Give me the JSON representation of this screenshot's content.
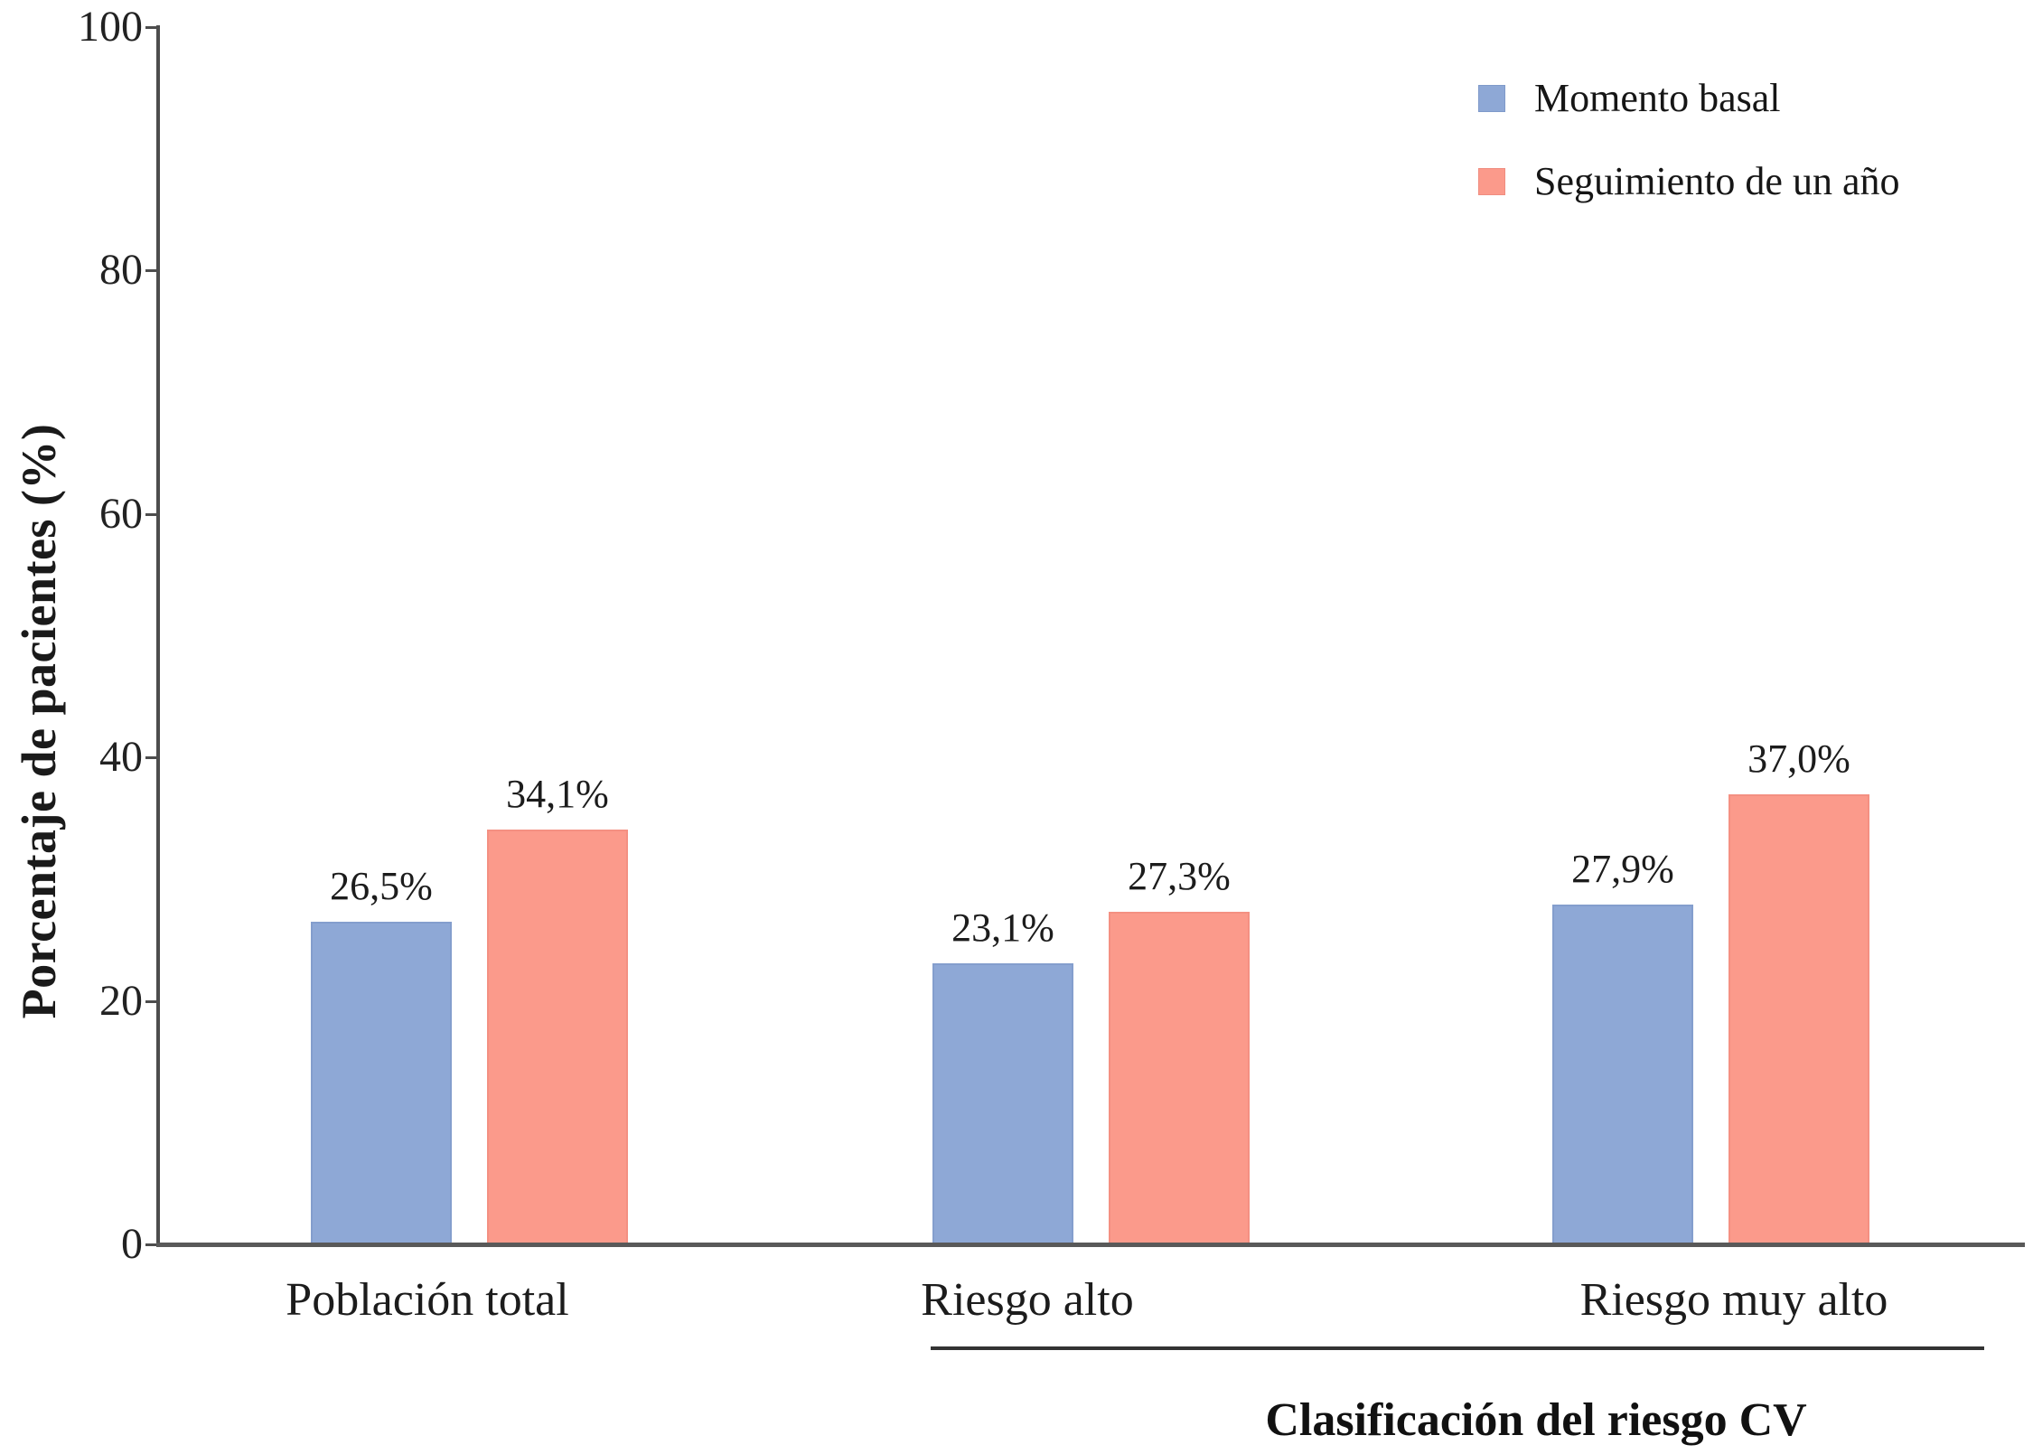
{
  "chart_data": {
    "type": "bar",
    "title": "",
    "categories": [
      "Población total",
      "Riesgo alto",
      "Riesgo muy alto"
    ],
    "series": [
      {
        "name": "Momento basal",
        "color": "#8EA8D6",
        "values": [
          26.5,
          23.1,
          27.9
        ],
        "labels": [
          "26,5%",
          "23,1%",
          "27,9%"
        ]
      },
      {
        "name": "Seguimiento de un año",
        "color": "#FB9A8B",
        "values": [
          34.1,
          27.3,
          37.0
        ],
        "labels": [
          "34,1%",
          "27,3%",
          "37,0%"
        ]
      }
    ],
    "ylabel": "Porcentaje de pacientes (%)",
    "xlabel": "Clasificación del riesgo CV",
    "xlabel_scope": "underline spans Riesgo alto and Riesgo muy alto groups",
    "ylim": [
      0,
      100
    ],
    "yticks": [
      0,
      20,
      40,
      60,
      80,
      100
    ],
    "grid": false,
    "legend_position": "top-right"
  }
}
